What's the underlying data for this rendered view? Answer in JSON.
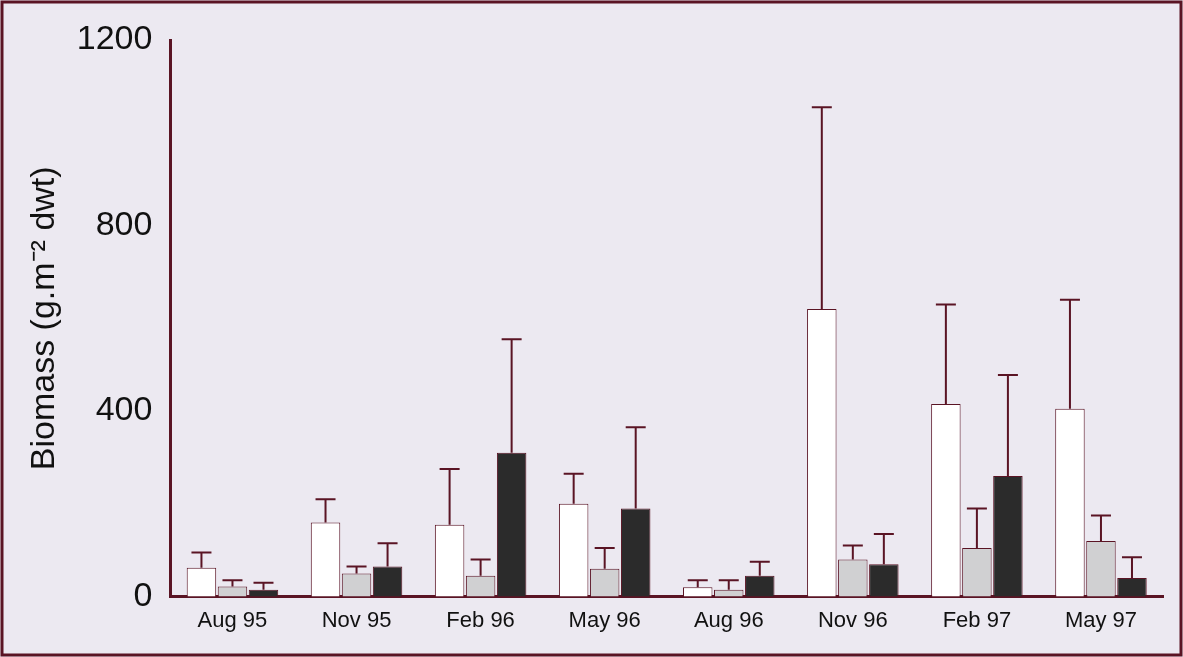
{
  "chart_data": {
    "type": "bar",
    "ylabel": "Biomass (g.m⁻² dwt)",
    "categories": [
      "Aug 95",
      "Nov 95",
      "Feb 96",
      "May 96",
      "Aug 96",
      "Nov 96",
      "Feb 97",
      "May 97"
    ],
    "series": [
      {
        "color": "#ffffff",
        "values": [
          62,
          160,
          155,
          200,
          20,
          620,
          415,
          405
        ],
        "errors": [
          [
            62,
            95
          ],
          [
            160,
            210
          ],
          [
            155,
            275
          ],
          [
            200,
            265
          ],
          [
            20,
            35
          ],
          [
            620,
            1055
          ],
          [
            415,
            630
          ],
          [
            405,
            640
          ]
        ]
      },
      {
        "color": "#d0d0d2",
        "values": [
          22,
          50,
          45,
          60,
          15,
          80,
          105,
          120
        ],
        "errors": [
          [
            22,
            35
          ],
          [
            50,
            65
          ],
          [
            45,
            80
          ],
          [
            60,
            105
          ],
          [
            15,
            35
          ],
          [
            80,
            110
          ],
          [
            105,
            190
          ],
          [
            120,
            175
          ]
        ]
      },
      {
        "color": "#2b2b2b",
        "values": [
          15,
          65,
          310,
          190,
          45,
          70,
          260,
          40
        ],
        "errors": [
          [
            15,
            30
          ],
          [
            65,
            115
          ],
          [
            310,
            555
          ],
          [
            190,
            365
          ],
          [
            45,
            75
          ],
          [
            70,
            135
          ],
          [
            260,
            478
          ],
          [
            40,
            85
          ]
        ]
      }
    ],
    "ylim": [
      0,
      1200
    ],
    "yticks": [
      0,
      400,
      800,
      1200
    ],
    "grid": false,
    "legend": false
  }
}
